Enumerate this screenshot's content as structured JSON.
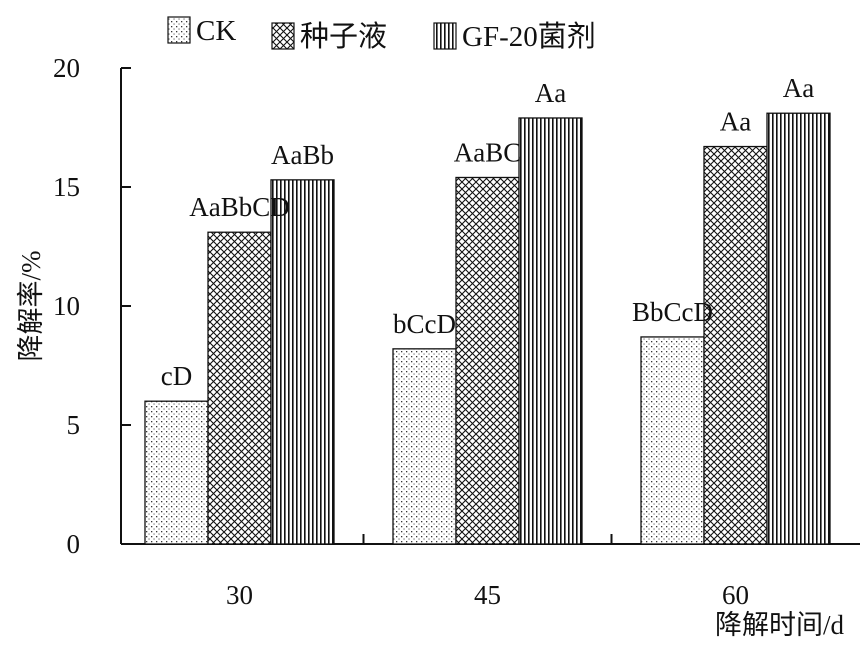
{
  "chart_data": {
    "type": "bar",
    "categories": [
      "30",
      "45",
      "60"
    ],
    "series": [
      {
        "name": "CK",
        "values": [
          6.0,
          8.2,
          8.7
        ],
        "labels": [
          "cD",
          "bCcD",
          "BbCcD"
        ],
        "pattern": "dots"
      },
      {
        "name": "种子液",
        "values": [
          13.1,
          15.4,
          16.7
        ],
        "labels": [
          "AaBbCD",
          "AaBC",
          "Aa"
        ],
        "pattern": "crosshatch"
      },
      {
        "name": "GF-20菌剂",
        "values": [
          15.3,
          17.9,
          18.1
        ],
        "labels": [
          "AaBb",
          "Aa",
          "Aa"
        ],
        "pattern": "vlines"
      }
    ],
    "xlabel": "降解时间/d",
    "ylabel": "降解率/%",
    "ylim": [
      0,
      20
    ],
    "yticks": [
      0,
      5,
      10,
      15,
      20
    ],
    "grid": false,
    "legend_position": "top"
  }
}
